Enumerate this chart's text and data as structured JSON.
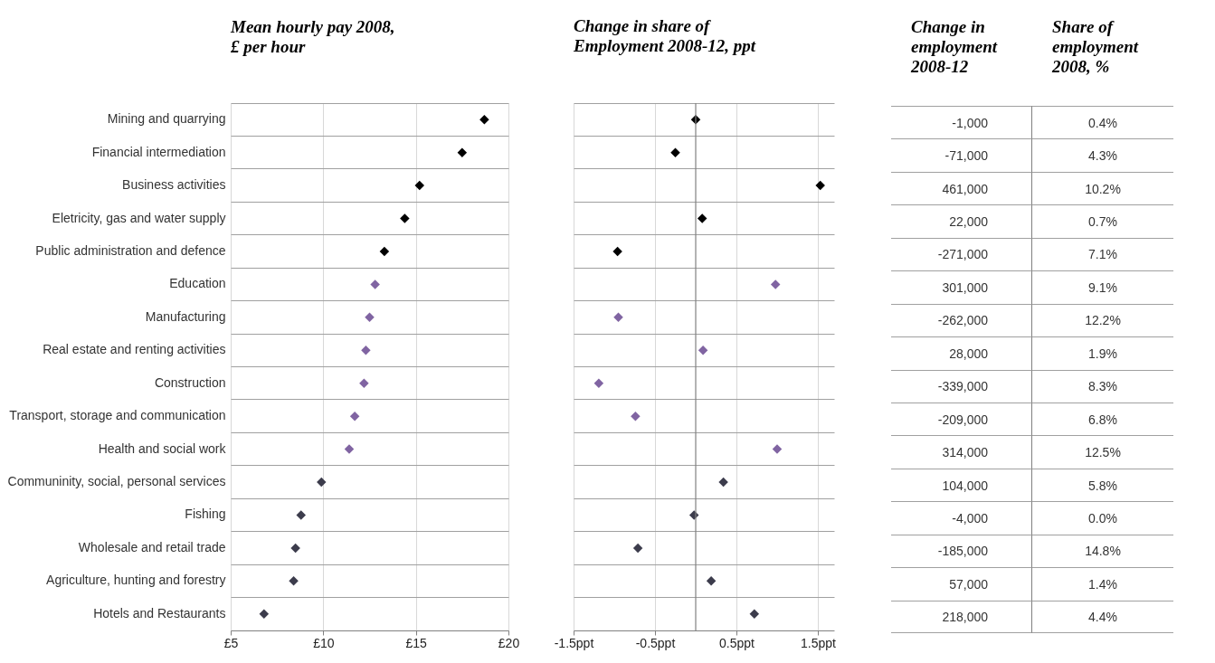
{
  "chart_data": [
    {
      "type": "scatter",
      "orientation": "horizontal",
      "title": "Mean hourly pay 2008,\n£ per hour",
      "marker": "diamond",
      "grid": true,
      "categories": [
        "Mining and quarrying",
        "Financial intermediation",
        "Business activities",
        "Eletricity, gas and water supply",
        "Public administration and defence",
        "Education",
        "Manufacturing",
        "Real estate and renting activities",
        "Construction",
        "Transport, storage and communication",
        "Health and social work",
        "Communinity, social, personal services",
        "Fishing",
        "Wholesale and retail trade",
        "Agriculture, hunting and forestry",
        "Hotels and Restaurants"
      ],
      "xlim": [
        5,
        20
      ],
      "xticks": [
        {
          "value": 5,
          "label": "£5"
        },
        {
          "value": 10,
          "label": "£10"
        },
        {
          "value": 15,
          "label": "£15"
        },
        {
          "value": 20,
          "label": "£20"
        }
      ],
      "series": [
        {
          "color": "#000000",
          "values": [
            18.7,
            17.5,
            15.2,
            14.4,
            13.3,
            null,
            null,
            null,
            null,
            null,
            null,
            null,
            null,
            null,
            null,
            null
          ]
        },
        {
          "color": "#8064a2",
          "values": [
            null,
            null,
            null,
            null,
            null,
            12.8,
            12.5,
            12.3,
            12.2,
            11.7,
            11.4,
            null,
            null,
            null,
            null,
            null
          ]
        },
        {
          "color": "#3c3c4c",
          "values": [
            null,
            null,
            null,
            null,
            null,
            null,
            null,
            null,
            null,
            null,
            null,
            9.9,
            8.8,
            8.5,
            8.4,
            6.8
          ]
        }
      ]
    },
    {
      "type": "scatter",
      "orientation": "horizontal",
      "title": "Change in share of\nEmployment 2008-12, ppt",
      "marker": "diamond",
      "grid": true,
      "tick_labels": "x",
      "categories": [
        null,
        null,
        null,
        null,
        null,
        null,
        null,
        null,
        null,
        null,
        null,
        null,
        null,
        null,
        null,
        null
      ],
      "xlim": [
        -1.5,
        1.7
      ],
      "xticks": [
        {
          "value": -1.5,
          "label": "-1.5ppt"
        },
        {
          "value": -0.5,
          "label": "-0.5ppt"
        },
        {
          "value": 0.5,
          "label": "0.5ppt"
        },
        {
          "value": 1.5,
          "label": "1.5ppt"
        }
      ],
      "ref_lines": [
        {
          "axis": "x",
          "value": 0,
          "color": "#808080"
        }
      ],
      "series": [
        {
          "color": "#000000",
          "values": [
            0.0,
            -0.25,
            1.53,
            0.08,
            -0.96,
            null,
            null,
            null,
            null,
            null,
            null,
            null,
            null,
            null,
            null,
            null
          ]
        },
        {
          "color": "#8064a2",
          "values": [
            null,
            null,
            null,
            null,
            null,
            0.98,
            -0.95,
            0.09,
            -1.19,
            -0.74,
            1.0,
            null,
            null,
            null,
            null,
            null
          ]
        },
        {
          "color": "#3c3c4c",
          "values": [
            null,
            null,
            null,
            null,
            null,
            null,
            null,
            null,
            null,
            null,
            null,
            0.34,
            -0.02,
            -0.71,
            0.19,
            0.72
          ]
        }
      ]
    },
    {
      "type": "other",
      "title": "Change in\nemployment\n2008-12",
      "annotations": [
        "-1,000",
        "-71,000",
        "461,000",
        "22,000",
        "-271,000",
        "301,000",
        "-262,000",
        "28,000",
        "-339,000",
        "-209,000",
        "314,000",
        "104,000",
        "-4,000",
        "-185,000",
        "57,000",
        "218,000"
      ]
    },
    {
      "type": "other",
      "title": "Share of\nemployment\n2008, %",
      "annotations": [
        "0.4%",
        "4.3%",
        "10.2%",
        "0.7%",
        "7.1%",
        "9.1%",
        "12.2%",
        "1.9%",
        "8.3%",
        "6.8%",
        "12.5%",
        "5.8%",
        "0.0%",
        "14.8%",
        "1.4%",
        "4.4%"
      ]
    }
  ]
}
